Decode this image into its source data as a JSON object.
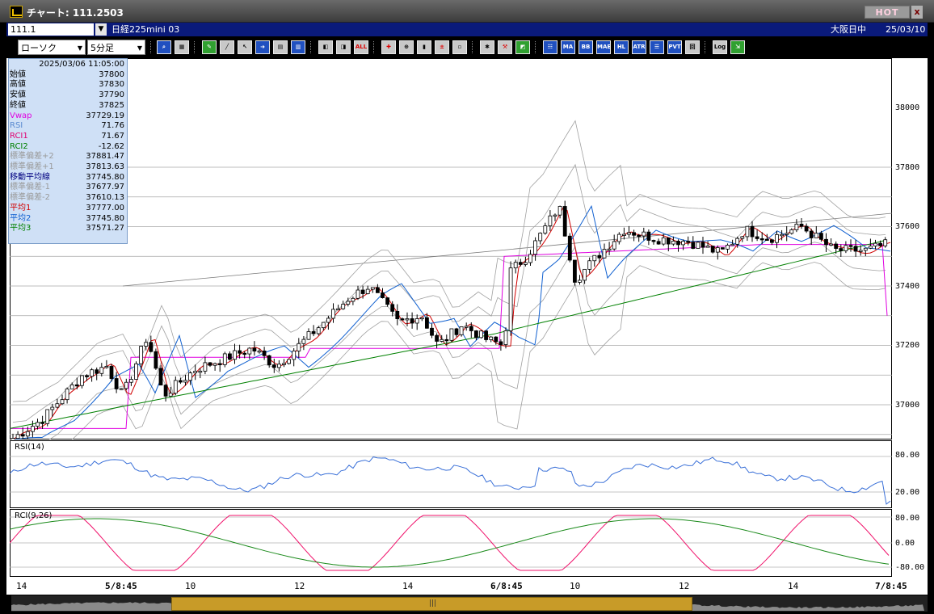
{
  "window": {
    "title": "チャート: 111.2503",
    "hot_label": "HOT",
    "close_label": "x"
  },
  "symbol_bar": {
    "code": "111.1",
    "name": "日経225mini 03",
    "exchange": "大阪日中",
    "date": "25/03/10"
  },
  "toolbar": {
    "chart_type": "ローソク",
    "interval": "5分足",
    "buttons": [
      "search-icon",
      "layout-icon",
      "pen-icon",
      "line-icon",
      "cursor-icon",
      "arrow-icon",
      "memo-icon",
      "delete-icon",
      "marker-icon",
      "marker2-icon",
      "all-button",
      "cross-icon",
      "zoom-icon",
      "bars-icon",
      "plusminus-icon",
      "lock-icon",
      "settings-icon",
      "tool-icon",
      "color-icon",
      "indicator-icon",
      "ma-button",
      "bb-button",
      "mae-button",
      "hl-button",
      "atr-button",
      "pv-button",
      "pvt-button",
      "kai-button",
      "log-button",
      "export-icon"
    ],
    "labels": {
      "all": "ALL",
      "ma": "MA",
      "bb": "BB",
      "mae": "MAE",
      "hl": "HL",
      "atr": "ATR",
      "pvt": "PVT",
      "log": "Log"
    }
  },
  "info": {
    "datetime": "2025/03/06  11:05:00",
    "rows": [
      {
        "k": "始値",
        "v": "37800",
        "color": "#000000"
      },
      {
        "k": "高値",
        "v": "37830",
        "color": "#000000"
      },
      {
        "k": "安値",
        "v": "37790",
        "color": "#000000"
      },
      {
        "k": "終値",
        "v": "37825",
        "color": "#000000"
      },
      {
        "k": "Vwap",
        "v": "37729.19",
        "color": "#e000e0"
      },
      {
        "k": "RSI",
        "v": "71.76",
        "color": "#5a8ad0"
      },
      {
        "k": "RCI1",
        "v": "71.67",
        "color": "#e00070"
      },
      {
        "k": "RCI2",
        "v": "-12.62",
        "color": "#008000"
      },
      {
        "k": "標準偏差+2",
        "v": "37881.47",
        "color": "#9a9a9a"
      },
      {
        "k": "標準偏差+1",
        "v": "37813.63",
        "color": "#9a9a9a"
      },
      {
        "k": "移動平均線",
        "v": "37745.80",
        "color": "#000080"
      },
      {
        "k": "標準偏差-1",
        "v": "37677.97",
        "color": "#9a9a9a"
      },
      {
        "k": "標準偏差-2",
        "v": "37610.13",
        "color": "#9a9a9a"
      },
      {
        "k": "平均1",
        "v": "37777.00",
        "color": "#d00000"
      },
      {
        "k": "平均2",
        "v": "37745.80",
        "color": "#1060d0"
      },
      {
        "k": "平均3",
        "v": "37571.27",
        "color": "#008000"
      }
    ]
  },
  "panels": {
    "rsi_label": "RSI(14)",
    "rci_label": "RCI(9,26)"
  },
  "price_axis": [
    "38000",
    "37800",
    "37600",
    "37400",
    "37200",
    "37000"
  ],
  "rsi_axis": [
    "80.00",
    "20.00"
  ],
  "rci_axis": [
    "80.00",
    "0.00",
    "-80.00"
  ],
  "x_axis": [
    "14",
    "5/8:45",
    "10",
    "12",
    "14",
    "6/8:45",
    "10",
    "12",
    "14",
    "7/8:45"
  ],
  "colors": {
    "bg": "#000000",
    "title_grad_top": "#6a6a6a",
    "symbar": "#0a1a7a",
    "candle_up": "#ffffff",
    "candle_down": "#000000",
    "ma1": "#d00000",
    "ma2": "#1060d0",
    "ma3": "#008000",
    "vwap": "#e000e0",
    "bands": "#a0a0a0",
    "rsi": "#3a70d8",
    "rci1": "#f0106a",
    "rci2": "#1a8a1a",
    "scroll_thumb": "#c89b28"
  }
}
